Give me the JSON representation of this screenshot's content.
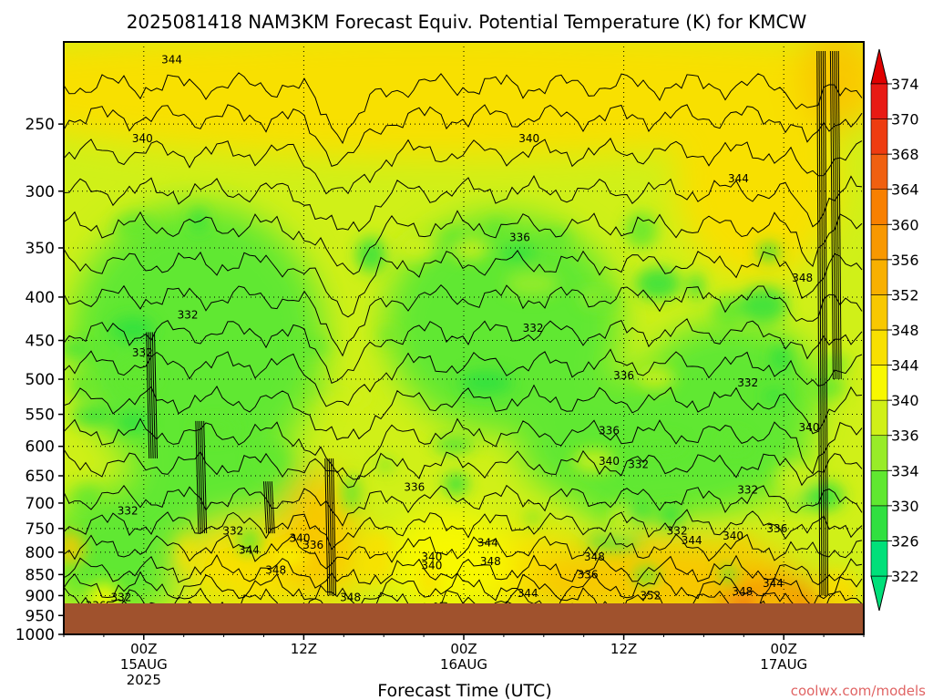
{
  "chart_data": {
    "type": "heatmap",
    "title": "2025081418 NAM3KM Forecast Equiv. Potential Temperature (K) for KMCW",
    "xlabel": "Forecast Time (UTC)",
    "ylabel": "",
    "y_scale": "log-pressure",
    "y_range_hPa": [
      1000,
      200
    ],
    "y_ticks": [
      250,
      300,
      350,
      400,
      450,
      500,
      550,
      600,
      650,
      700,
      750,
      800,
      850,
      900,
      950,
      1000
    ],
    "y_tick_labels": [
      "250",
      "300",
      "350",
      "400",
      "450",
      "500",
      "550",
      "600",
      "650",
      "700",
      "750",
      "800",
      "850",
      "900",
      "950",
      "1000"
    ],
    "x_range_hours_from_init": [
      0,
      60
    ],
    "x_ticks": [
      {
        "hour": 6,
        "lines": [
          "00Z",
          "15AUG",
          "2025"
        ]
      },
      {
        "hour": 18,
        "lines": [
          "12Z"
        ]
      },
      {
        "hour": 30,
        "lines": [
          "00Z",
          "16AUG"
        ]
      },
      {
        "hour": 42,
        "lines": [
          "12Z"
        ]
      },
      {
        "hour": 54,
        "lines": [
          "00Z",
          "17AUG"
        ]
      }
    ],
    "grid": true,
    "colorbar": {
      "position": "right",
      "levels": [
        322,
        326,
        330,
        334,
        336,
        340,
        344,
        348,
        352,
        356,
        360,
        364,
        368,
        370,
        374
      ],
      "labels": [
        "322",
        "326",
        "330",
        "334",
        "336",
        "340",
        "344",
        "348",
        "352",
        "356",
        "360",
        "364",
        "368",
        "370",
        "374"
      ],
      "colors": [
        "#00e07a",
        "#30e040",
        "#60e830",
        "#98ec28",
        "#d0f018",
        "#f8f800",
        "#f8e000",
        "#f8c800",
        "#f8b000",
        "#f89800",
        "#f88000",
        "#f06010",
        "#ee3c10",
        "#e81a14",
        "#e00000"
      ]
    },
    "contour_labels": [
      {
        "value": "344",
        "hour": 8.1,
        "p": 210
      },
      {
        "value": "340",
        "hour": 5.9,
        "p": 260
      },
      {
        "value": "340",
        "hour": 34.9,
        "p": 260
      },
      {
        "value": "344",
        "hour": 50.6,
        "p": 290
      },
      {
        "value": "336",
        "hour": 34.2,
        "p": 340
      },
      {
        "value": "348",
        "hour": 55.4,
        "p": 380
      },
      {
        "value": "332",
        "hour": 9.3,
        "p": 420
      },
      {
        "value": "332",
        "hour": 35.2,
        "p": 435
      },
      {
        "value": "332",
        "hour": 5.9,
        "p": 465
      },
      {
        "value": "336",
        "hour": 42.0,
        "p": 495
      },
      {
        "value": "332",
        "hour": 51.3,
        "p": 505
      },
      {
        "value": "340",
        "hour": 55.9,
        "p": 570
      },
      {
        "value": "336",
        "hour": 40.9,
        "p": 575
      },
      {
        "value": "340",
        "hour": 40.9,
        "p": 625
      },
      {
        "value": "332",
        "hour": 43.1,
        "p": 630
      },
      {
        "value": "336",
        "hour": 26.3,
        "p": 670
      },
      {
        "value": "332",
        "hour": 51.3,
        "p": 675
      },
      {
        "value": "332",
        "hour": 4.8,
        "p": 715
      },
      {
        "value": "332",
        "hour": 12.7,
        "p": 755
      },
      {
        "value": "340",
        "hour": 17.7,
        "p": 770
      },
      {
        "value": "336",
        "hour": 18.7,
        "p": 785
      },
      {
        "value": "344",
        "hour": 13.9,
        "p": 795
      },
      {
        "value": "344",
        "hour": 31.8,
        "p": 780
      },
      {
        "value": "332",
        "hour": 46.0,
        "p": 755
      },
      {
        "value": "344",
        "hour": 47.1,
        "p": 775
      },
      {
        "value": "340",
        "hour": 50.2,
        "p": 765
      },
      {
        "value": "336",
        "hour": 53.5,
        "p": 750
      },
      {
        "value": "340",
        "hour": 27.6,
        "p": 810
      },
      {
        "value": "348",
        "hour": 32.0,
        "p": 820
      },
      {
        "value": "340",
        "hour": 27.6,
        "p": 830
      },
      {
        "value": "348",
        "hour": 15.9,
        "p": 840
      },
      {
        "value": "348",
        "hour": 39.8,
        "p": 810
      },
      {
        "value": "336",
        "hour": 39.3,
        "p": 850
      },
      {
        "value": "344",
        "hour": 34.8,
        "p": 895
      },
      {
        "value": "352",
        "hour": 44.0,
        "p": 900
      },
      {
        "value": "348",
        "hour": 50.9,
        "p": 890
      },
      {
        "value": "344",
        "hour": 53.2,
        "p": 870
      },
      {
        "value": "348",
        "hour": 21.5,
        "p": 905
      },
      {
        "value": "336",
        "hour": 21.2,
        "p": 945
      },
      {
        "value": "332",
        "hour": 4.3,
        "p": 905
      },
      {
        "value": "336",
        "hour": 2.4,
        "p": 925
      },
      {
        "value": "340",
        "hour": 6.0,
        "p": 960
      },
      {
        "value": "336",
        "hour": 10.0,
        "p": 955
      },
      {
        "value": "344",
        "hour": 34.0,
        "p": 960
      },
      {
        "value": "336",
        "hour": 35.8,
        "p": 970
      },
      {
        "value": "340",
        "hour": 37.8,
        "p": 965
      },
      {
        "value": "348",
        "hour": 44.1,
        "p": 985
      }
    ],
    "credit": "coolwx.com/models"
  }
}
